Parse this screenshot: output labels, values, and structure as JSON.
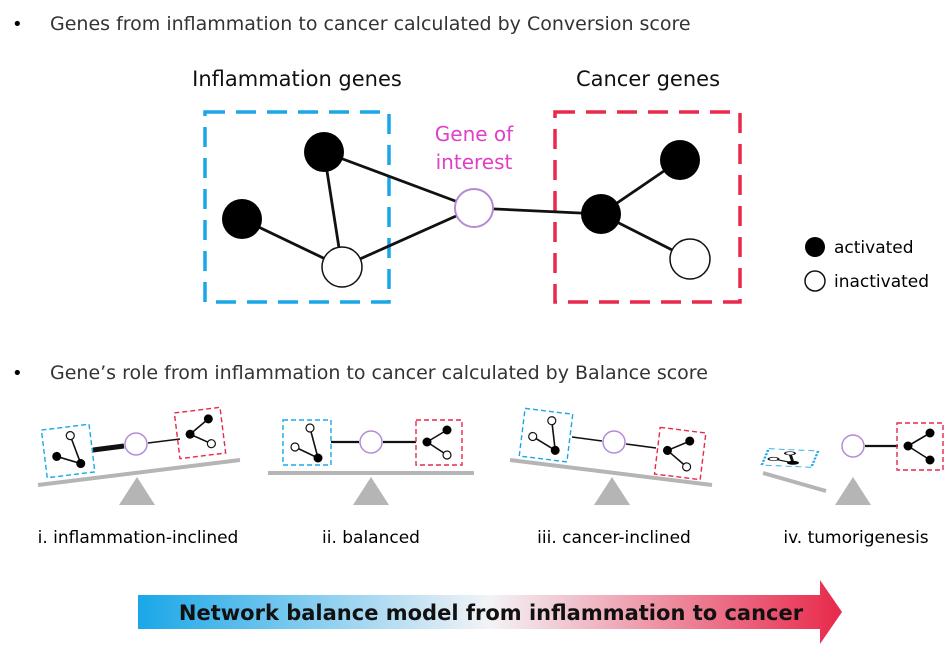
{
  "bullet": "•",
  "section1": {
    "title": "Genes from inflammation to cancer calculated by Conversion score"
  },
  "inflammation_group": {
    "label": "Inflammation genes",
    "color": "#1aa7e8"
  },
  "cancer_group": {
    "label": "Cancer genes",
    "color": "#e8294b"
  },
  "gene_of_interest": {
    "line1": "Gene of",
    "line2": "interest",
    "color": "#e040c8",
    "node_color": "#b48ad6"
  },
  "legend": {
    "activated": "activated",
    "inactivated": "inactivated"
  },
  "section2": {
    "title": "Gene’s role from inflammation to cancer calculated by Balance score"
  },
  "panels": [
    {
      "label": "i. inflammation-inclined"
    },
    {
      "label": "ii. balanced"
    },
    {
      "label": "iii. cancer-inclined"
    },
    {
      "label": "iv. tumorigenesis"
    }
  ],
  "banner": {
    "text": "Network balance model from inflammation to cancer",
    "color_start": "#1aa7e8",
    "color_end": "#e8294b"
  }
}
